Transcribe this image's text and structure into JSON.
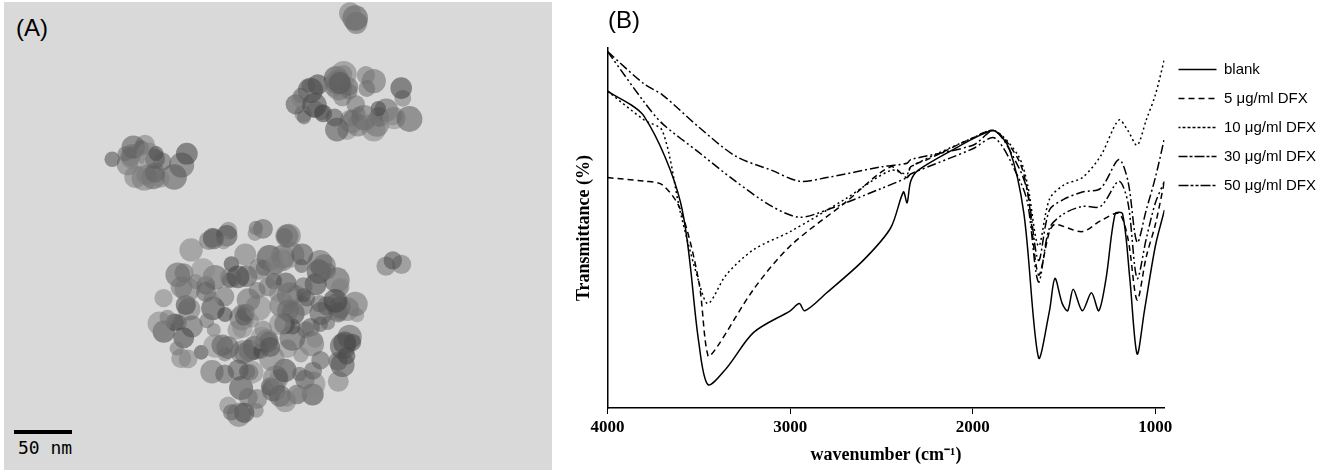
{
  "image_panel": {
    "label": "(A)",
    "scale_bar": "50 nm"
  },
  "chart_data": {
    "type": "line",
    "label": "(B)",
    "x_label": "wavenumber (cm⁻¹)",
    "y_label": "Transmittance (%)",
    "xlim": [
      4000,
      950
    ],
    "xticks": [
      4000,
      3000,
      2000,
      1000
    ],
    "ylim": [
      0,
      100
    ],
    "tick_labels": "x",
    "grid": false,
    "legend": "right",
    "series": [
      {
        "name": "blank",
        "color": "#000000",
        "line_style": "solid",
        "x": [
          4000,
          3800,
          3600,
          3500,
          3450,
          3350,
          3200,
          3000,
          2950,
          2920,
          2800,
          2600,
          2450,
          2380,
          2360,
          2340,
          2300,
          2100,
          1950,
          1880,
          1800,
          1720,
          1640,
          1580,
          1550,
          1510,
          1480,
          1450,
          1400,
          1350,
          1310,
          1270,
          1220,
          1180,
          1140,
          1100,
          1060,
          1000,
          950
        ],
        "values": [
          88,
          81,
          57,
          18,
          6.5,
          11,
          21,
          27,
          29,
          27,
          32,
          41,
          50,
          60,
          57,
          63,
          66,
          72,
          76,
          77,
          72,
          54,
          14,
          27,
          36,
          29,
          27,
          33,
          27,
          32,
          27,
          36,
          54,
          54,
          36,
          15,
          27,
          45,
          55
        ]
      },
      {
        "name": "5 μg/ml DFX",
        "color": "#000000",
        "line_style": "dashed",
        "x": [
          4000,
          3800,
          3700,
          3600,
          3500,
          3450,
          3400,
          3200,
          3000,
          2700,
          2450,
          2360,
          2340,
          2250,
          2000,
          1880,
          1750,
          1700,
          1640,
          1580,
          1550,
          1400,
          1300,
          1200,
          1150,
          1100,
          1050,
          1000,
          950
        ],
        "values": [
          64,
          63,
          62,
          55,
          35,
          14.5,
          17,
          33,
          45,
          57,
          67,
          64,
          67,
          69,
          75,
          77,
          69,
          60,
          37,
          49,
          51,
          49,
          52,
          54,
          47,
          30,
          42,
          51,
          63
        ]
      },
      {
        "name": "10 μg/ml DFX",
        "color": "#000000",
        "line_style": "dotted",
        "x": [
          4000,
          3800,
          3700,
          3600,
          3500,
          3450,
          3350,
          3200,
          3000,
          2700,
          2450,
          2360,
          2340,
          2000,
          1880,
          1750,
          1700,
          1640,
          1580,
          1500,
          1400,
          1300,
          1200,
          1150,
          1100,
          1050,
          1000,
          950
        ],
        "values": [
          88,
          80,
          77,
          54,
          35,
          29,
          37,
          44,
          49,
          58,
          66,
          65,
          67,
          75,
          77,
          70,
          62,
          45,
          58,
          62,
          64,
          70,
          80,
          77,
          73,
          80,
          87,
          97
        ]
      },
      {
        "name": "30 μg/ml DFX",
        "color": "#000000",
        "line_style": "dashdot",
        "x": [
          4000,
          3800,
          3700,
          3500,
          3300,
          3100,
          2950,
          2800,
          2500,
          2360,
          2340,
          2000,
          1880,
          1750,
          1700,
          1640,
          1580,
          1500,
          1400,
          1300,
          1200,
          1150,
          1100,
          1050,
          1000,
          950
        ],
        "values": [
          99,
          90,
          87,
          78,
          70,
          66,
          63,
          64,
          67,
          68,
          69,
          73,
          77,
          67,
          60,
          41,
          55,
          58,
          60,
          61,
          69,
          63,
          46,
          55,
          64,
          75
        ]
      },
      {
        "name": "50 μg/ml DFX",
        "color": "#000000",
        "line_style": "dashdotdot",
        "x": [
          4000,
          3800,
          3700,
          3500,
          3300,
          3100,
          2950,
          2800,
          2500,
          2360,
          2340,
          2000,
          1880,
          1750,
          1700,
          1640,
          1580,
          1500,
          1400,
          1300,
          1200,
          1150,
          1100,
          1050,
          1000,
          950
        ],
        "values": [
          99,
          85,
          79,
          71,
          63,
          56,
          53,
          55,
          61,
          64,
          65,
          72,
          75,
          64,
          57,
          35,
          50,
          54,
          56,
          56,
          63,
          57,
          36,
          47,
          57,
          63
        ]
      }
    ]
  }
}
